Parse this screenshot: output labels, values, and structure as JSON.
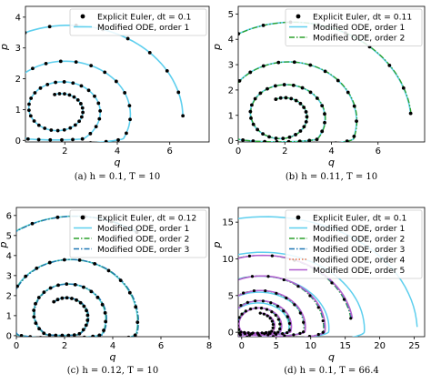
{
  "figure": {
    "captions": [
      "(a) h = 0.1, T = 10",
      "(b) h = 0.11, T = 10",
      "(c) h = 0.12, T = 10",
      "(d) h = 0.1, T = 66.4"
    ]
  },
  "colors": {
    "euler": "#000000",
    "order1": "#5ecfee",
    "order2": "#2ca02c",
    "order3": "#1f77b4",
    "order4": "#e8734a",
    "order5": "#b05fcf"
  },
  "chart_data": [
    {
      "type": "line",
      "xlabel": "q",
      "ylabel": "p",
      "xlim": [
        0.5,
        7.5
      ],
      "ylim": [
        -0.05,
        4.35
      ],
      "xticks": [
        2,
        4,
        6
      ],
      "yticks": [
        0,
        1,
        2,
        3,
        4
      ],
      "legend": "top-right",
      "series": [
        {
          "name": "Explicit Euler, dt = 0.1",
          "style": "markers",
          "color": "#000000"
        },
        {
          "name": "Modified ODE, order 1",
          "style": "solid",
          "color": "#5ecfee"
        }
      ],
      "trajectory": {
        "start": [
          6.5,
          0.7
        ],
        "end_point": [
          1.8,
          1.0
        ],
        "turns": 3.3,
        "peak_p": 4.0
      }
    },
    {
      "type": "line",
      "xlabel": "q",
      "ylabel": "p",
      "xlim": [
        0,
        8
      ],
      "ylim": [
        -0.05,
        5.3
      ],
      "xticks": [
        0,
        2,
        4,
        6
      ],
      "yticks": [
        0,
        1,
        2,
        3,
        4,
        5
      ],
      "legend": "top-right",
      "series": [
        {
          "name": "Explicit Euler, dt = 0.11",
          "style": "markers",
          "color": "#000000"
        },
        {
          "name": "Modified ODE, order 1",
          "style": "solid",
          "color": "#5ecfee"
        },
        {
          "name": "Modified ODE, order 2",
          "style": "dashdot",
          "color": "#2ca02c"
        }
      ],
      "trajectory": {
        "start": [
          7.4,
          1.1
        ],
        "end_point": [
          1.9,
          1.0
        ],
        "turns": 3.3,
        "peak_p": 5.0
      }
    },
    {
      "type": "line",
      "xlabel": "q",
      "ylabel": "p",
      "xlim": [
        0,
        8
      ],
      "ylim": [
        -0.05,
        6.4
      ],
      "xticks": [
        0,
        2,
        4,
        6,
        8
      ],
      "yticks": [
        0,
        1,
        2,
        3,
        4,
        5,
        6
      ],
      "legend": "top-right",
      "series": [
        {
          "name": "Explicit Euler, dt = 0.12",
          "style": "markers",
          "color": "#000000"
        },
        {
          "name": "Modified ODE, order 1",
          "style": "solid",
          "color": "#5ecfee"
        },
        {
          "name": "Modified ODE, order 2",
          "style": "dashdot",
          "color": "#2ca02c"
        },
        {
          "name": "Modified ODE, order 3",
          "style": "dashdot",
          "color": "#1f77b4"
        }
      ],
      "trajectory": {
        "start": [
          5.0,
          4.9
        ],
        "end_point": [
          2.0,
          1.0
        ],
        "turns": 3.2,
        "peak_p": 6.0
      }
    },
    {
      "type": "line",
      "xlabel": "q",
      "ylabel": "p",
      "xlim": [
        -0.5,
        26.5
      ],
      "ylim": [
        -0.6,
        17
      ],
      "xticks": [
        0,
        5,
        10,
        15,
        20,
        25
      ],
      "yticks": [
        0,
        5,
        10,
        15
      ],
      "legend": "top-right",
      "series": [
        {
          "name": "Explicit Euler, dt = 0.1",
          "style": "markers",
          "color": "#000000"
        },
        {
          "name": "Modified ODE, order 1",
          "style": "solid",
          "color": "#5ecfee"
        },
        {
          "name": "Modified ODE, order 2",
          "style": "dashdot",
          "color": "#2ca02c"
        },
        {
          "name": "Modified ODE, order 3",
          "style": "dashdot",
          "color": "#1f77b4"
        },
        {
          "name": "Modified ODE, order 4",
          "style": "dotted",
          "color": "#e8734a"
        },
        {
          "name": "Modified ODE, order 5",
          "style": "solid",
          "color": "#b05fcf"
        }
      ],
      "trajectory": {
        "start_order1": [
          25.5,
          0.6
        ],
        "start_high_order": [
          15.8,
          2.2
        ],
        "end_point": [
          2.2,
          1.0
        ],
        "peak_p_order1": 16.5,
        "peak_p_high_order": 10.8
      }
    }
  ]
}
